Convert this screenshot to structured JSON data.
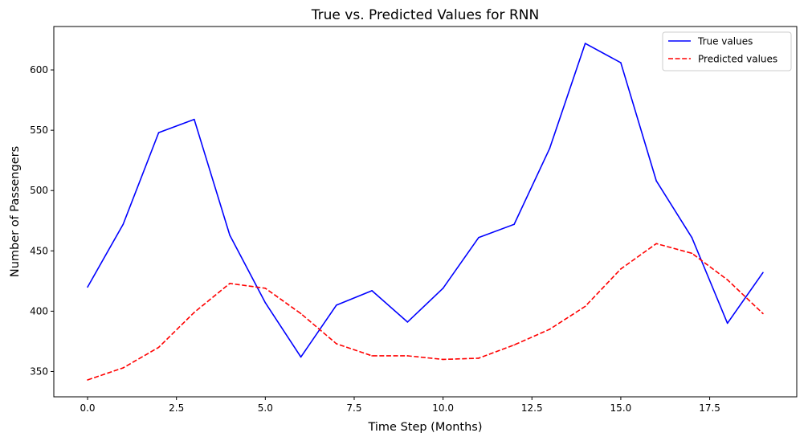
{
  "chart_data": {
    "type": "line",
    "title": "True vs. Predicted Values for RNN",
    "xlabel": "Time Step (Months)",
    "ylabel": "Number of Passengers",
    "xlim": [
      -0.95,
      19.95
    ],
    "ylim": [
      329,
      636
    ],
    "xticks": [
      0.0,
      2.5,
      5.0,
      7.5,
      10.0,
      12.5,
      15.0,
      17.5
    ],
    "xtick_labels": [
      "0.0",
      "2.5",
      "5.0",
      "7.5",
      "10.0",
      "12.5",
      "15.0",
      "17.5"
    ],
    "yticks": [
      350,
      400,
      450,
      500,
      550,
      600
    ],
    "ytick_labels": [
      "350",
      "400",
      "450",
      "500",
      "550",
      "600"
    ],
    "grid": false,
    "legend_position": "top-right",
    "x": [
      0,
      1,
      2,
      3,
      4,
      5,
      6,
      7,
      8,
      9,
      10,
      11,
      12,
      13,
      14,
      15,
      16,
      17,
      18,
      19
    ],
    "series": [
      {
        "name": "True values",
        "color": "#0000ff",
        "style": "solid",
        "values": [
          420,
          472,
          548,
          559,
          463,
          407,
          362,
          405,
          417,
          391,
          419,
          461,
          472,
          535,
          622,
          606,
          508,
          461,
          390,
          432
        ]
      },
      {
        "name": "Predicted values",
        "color": "#ff0000",
        "style": "dashed",
        "values": [
          343,
          353,
          370,
          399,
          423,
          419,
          398,
          373,
          363,
          363,
          360,
          361,
          372,
          385,
          404,
          435,
          456,
          448,
          426,
          398
        ]
      }
    ]
  }
}
